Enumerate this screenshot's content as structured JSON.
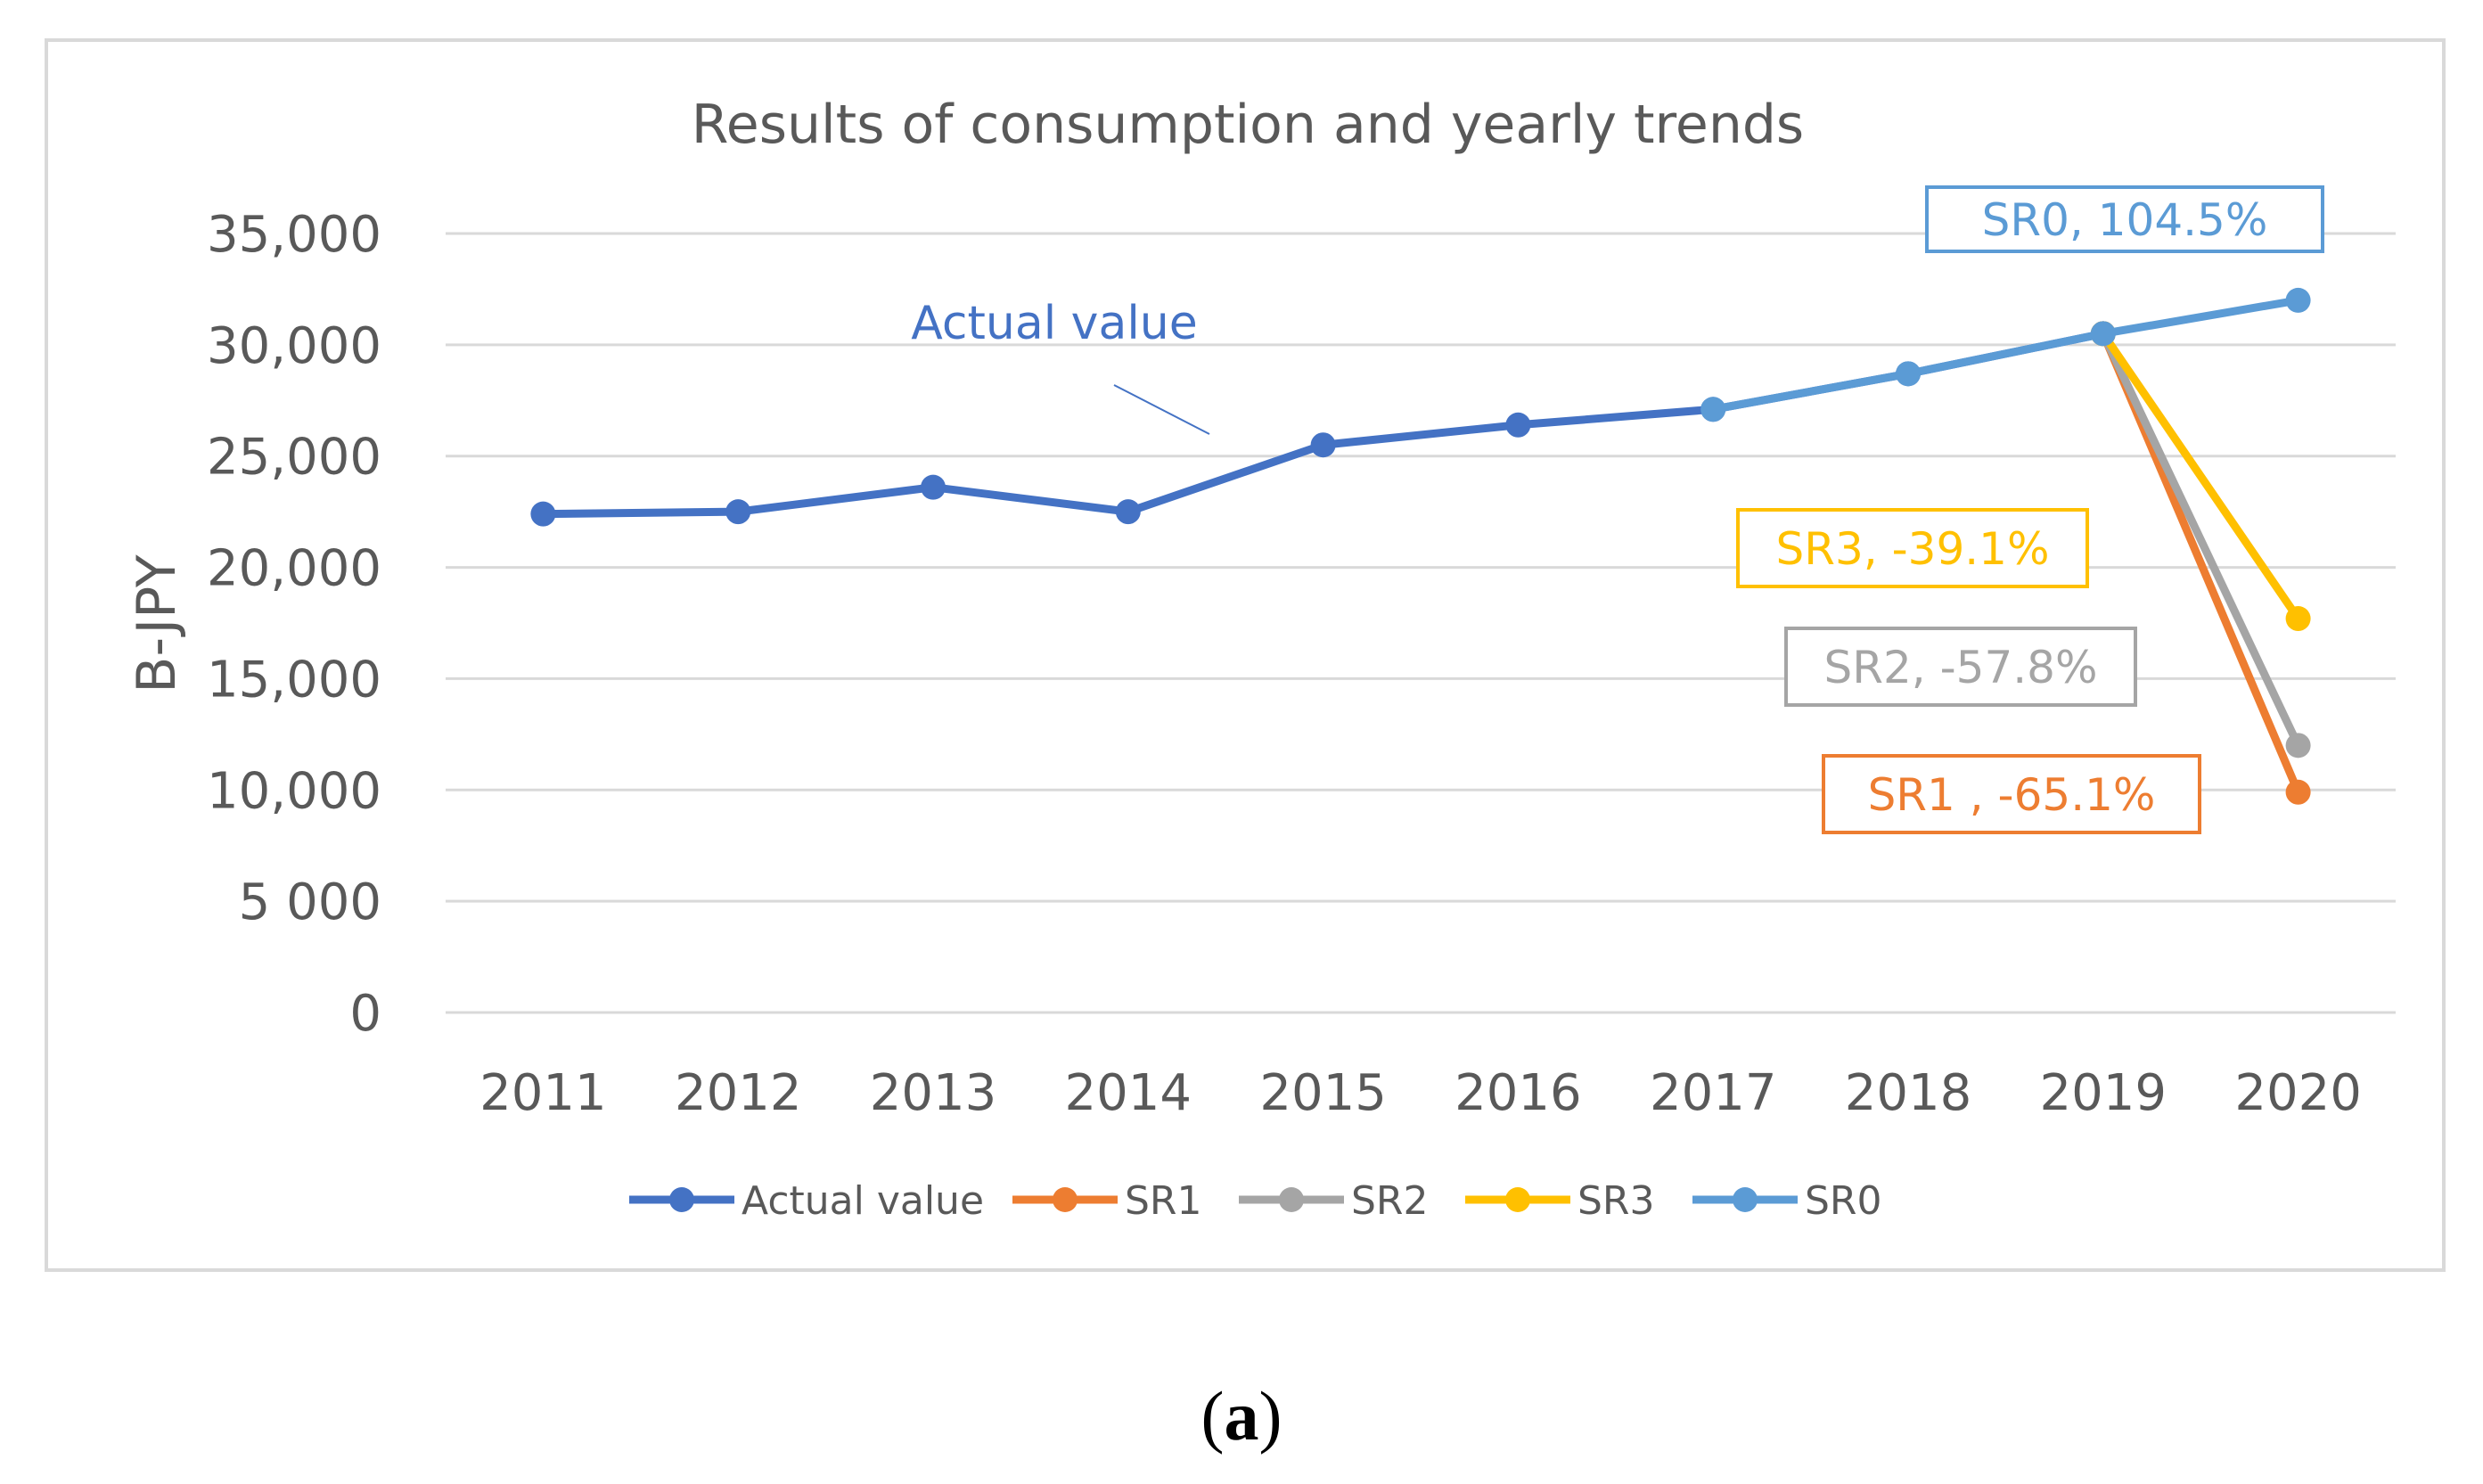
{
  "chart_data": {
    "type": "line",
    "title": "Results of consumption and yearly trends",
    "xlabel": "",
    "ylabel": "B-JPY",
    "ylim": [
      0,
      35000
    ],
    "yticks": [
      {
        "value": 0,
        "label": "0"
      },
      {
        "value": 5000,
        "label": "5 000"
      },
      {
        "value": 10000,
        "label": "10,000"
      },
      {
        "value": 15000,
        "label": "15,000"
      },
      {
        "value": 20000,
        "label": "20,000"
      },
      {
        "value": 25000,
        "label": "25,000"
      },
      {
        "value": 30000,
        "label": "30,000"
      },
      {
        "value": 35000,
        "label": "35,000"
      }
    ],
    "categories": [
      "2011",
      "2012",
      "2013",
      "2014",
      "2015",
      "2016",
      "2017",
      "2018",
      "2019",
      "2020"
    ],
    "grid": true,
    "legend_position": "bottom",
    "series": [
      {
        "name": "Actual value",
        "color": "#4472C4",
        "values": [
          22400,
          22500,
          23600,
          22500,
          25500,
          26400,
          27100,
          28700,
          30500,
          null
        ]
      },
      {
        "name": "SR1",
        "color": "#ED7D31",
        "values": [
          null,
          null,
          null,
          null,
          null,
          null,
          null,
          null,
          30500,
          9900
        ]
      },
      {
        "name": "SR2",
        "color": "#A5A5A5",
        "values": [
          null,
          null,
          null,
          null,
          null,
          null,
          null,
          null,
          30500,
          12000
        ]
      },
      {
        "name": "SR3",
        "color": "#FFC000",
        "values": [
          null,
          null,
          null,
          null,
          null,
          null,
          null,
          null,
          30500,
          17700
        ]
      },
      {
        "name": "SR0",
        "color": "#5B9BD5",
        "values": [
          null,
          null,
          null,
          null,
          null,
          null,
          27100,
          28700,
          30500,
          32000
        ]
      }
    ],
    "annotations": [
      {
        "text": "Actual value",
        "series": "Actual value",
        "style": "callout-line",
        "color": "#4472C4"
      },
      {
        "text": "SR0, 104.5%",
        "series": "SR0",
        "style": "box",
        "color": "#5B9BD5"
      },
      {
        "text": "SR3, -39.1%",
        "series": "SR3",
        "style": "box",
        "color": "#FFC000"
      },
      {
        "text": "SR2, -57.8%",
        "series": "SR2",
        "style": "box",
        "color": "#A5A5A5"
      },
      {
        "text": "SR1 , -65.1%",
        "series": "SR1",
        "style": "box",
        "color": "#ED7D31"
      }
    ]
  },
  "caption": {
    "open": "(",
    "label": "a",
    "close": ")"
  }
}
